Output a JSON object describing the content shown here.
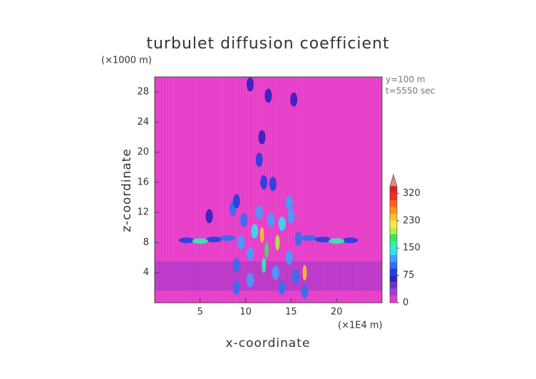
{
  "chart_data": {
    "type": "contour",
    "title": "turbulet diffusion coefficient",
    "y_unit": "(×1000 m)",
    "x_unit": "(×1E4 m)",
    "annotations": [
      "y=100 m",
      "t=5550 sec"
    ],
    "xlabel": "x-coordinate",
    "ylabel": "z-coordinate",
    "xlim": [
      0,
      25
    ],
    "ylim": [
      0,
      30
    ],
    "xticks": [
      5,
      10,
      15,
      20
    ],
    "yticks": [
      4,
      8,
      12,
      16,
      20,
      24,
      28
    ],
    "background_color": "#e63cc8",
    "bands": [
      {
        "zlim": [
          1.6,
          5.5
        ],
        "value": 40
      }
    ],
    "features": [
      {
        "x": 3.5,
        "z": 8.3,
        "value": 90
      },
      {
        "x": 5,
        "z": 8.2,
        "value": 150
      },
      {
        "x": 6.5,
        "z": 8.4,
        "value": 90
      },
      {
        "x": 8,
        "z": 8.6,
        "value": 100
      },
      {
        "x": 17,
        "z": 8.6,
        "value": 100
      },
      {
        "x": 18.5,
        "z": 8.4,
        "value": 90
      },
      {
        "x": 20,
        "z": 8.2,
        "value": 150
      },
      {
        "x": 21.5,
        "z": 8.3,
        "value": 90
      },
      {
        "x": 9,
        "z": 2,
        "value": 100
      },
      {
        "x": 9,
        "z": 5,
        "value": 110
      },
      {
        "x": 9.5,
        "z": 8,
        "value": 120
      },
      {
        "x": 9.8,
        "z": 11,
        "value": 100
      },
      {
        "x": 10.5,
        "z": 3,
        "value": 120
      },
      {
        "x": 10.5,
        "z": 6.5,
        "value": 130
      },
      {
        "x": 11,
        "z": 9.5,
        "value": 140
      },
      {
        "x": 11.5,
        "z": 12,
        "value": 120
      },
      {
        "x": 11.8,
        "z": 9,
        "value": 230
      },
      {
        "x": 12,
        "z": 5,
        "value": 150
      },
      {
        "x": 12.3,
        "z": 7,
        "value": 170
      },
      {
        "x": 12.8,
        "z": 11,
        "value": 130
      },
      {
        "x": 13.3,
        "z": 4,
        "value": 120
      },
      {
        "x": 13.5,
        "z": 8,
        "value": 200
      },
      {
        "x": 14,
        "z": 10.5,
        "value": 140
      },
      {
        "x": 14,
        "z": 2,
        "value": 110
      },
      {
        "x": 14.8,
        "z": 6,
        "value": 130
      },
      {
        "x": 15,
        "z": 11.5,
        "value": 120
      },
      {
        "x": 15.5,
        "z": 3.5,
        "value": 110
      },
      {
        "x": 15.8,
        "z": 8.5,
        "value": 110
      },
      {
        "x": 16.5,
        "z": 4,
        "value": 230
      },
      {
        "x": 16.5,
        "z": 1.5,
        "value": 100
      },
      {
        "x": 8.6,
        "z": 12.5,
        "value": 100
      },
      {
        "x": 9,
        "z": 13.5,
        "value": 90
      },
      {
        "x": 14.8,
        "z": 13.3,
        "value": 130
      },
      {
        "x": 6,
        "z": 11.5,
        "value": 60
      },
      {
        "x": 12,
        "z": 16,
        "value": 80
      },
      {
        "x": 13,
        "z": 15.8,
        "value": 90
      },
      {
        "x": 11.5,
        "z": 19,
        "value": 80
      },
      {
        "x": 11.8,
        "z": 22,
        "value": 70
      },
      {
        "x": 12.5,
        "z": 27.5,
        "value": 70
      },
      {
        "x": 10.5,
        "z": 29,
        "value": 70
      },
      {
        "x": 15.3,
        "z": 27,
        "value": 70
      }
    ],
    "colorbar": {
      "levels": [
        0,
        18.75,
        37.5,
        56.25,
        75,
        93.75,
        112.5,
        131.25,
        150,
        170,
        190,
        210,
        230,
        252.5,
        275,
        297.5,
        320,
        342.5
      ],
      "colors": [
        "#e63cc8",
        "#a040d0",
        "#7030c8",
        "#3020c0",
        "#2040e0",
        "#3070f0",
        "#40a0ff",
        "#30e0f0",
        "#30f0b0",
        "#40e060",
        "#b0f040",
        "#f0f040",
        "#ffc030",
        "#ff9020",
        "#ff6020",
        "#f03020",
        "#e02020"
      ],
      "extend_color": "#f08080",
      "ticks": [
        0,
        75,
        150,
        230,
        320
      ]
    }
  }
}
